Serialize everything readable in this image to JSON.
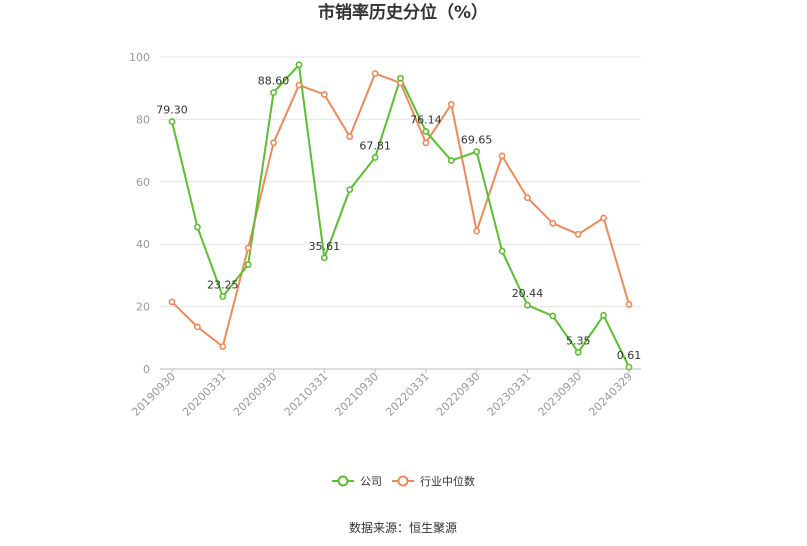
{
  "chart_data": {
    "type": "line",
    "title": "市销率历史分位（%）",
    "x": [
      "20190930",
      "20191231",
      "20200331",
      "20200630",
      "20200930",
      "20201231",
      "20210331",
      "20210630",
      "20210930",
      "20211231",
      "20220331",
      "20220630",
      "20220930",
      "20221231",
      "20230331",
      "20230630",
      "20230930",
      "20231231",
      "20240329"
    ],
    "x_tick_labels": [
      "20190930",
      "20200331",
      "20200930",
      "20210331",
      "20210930",
      "20220331",
      "20220930",
      "20230331",
      "20230930",
      "20240329"
    ],
    "ylim": [
      0,
      100
    ],
    "y_ticks": [
      0,
      20,
      40,
      60,
      80,
      100
    ],
    "grid": true,
    "legend_position": "bottom",
    "series": [
      {
        "name": "公司",
        "color": "#5bbf2e",
        "values": [
          79.3,
          45.5,
          23.25,
          33.5,
          88.6,
          97.5,
          35.61,
          57.5,
          67.81,
          93.2,
          76.14,
          66.8,
          69.65,
          37.8,
          20.44,
          17.0,
          5.35,
          17.2,
          0.61
        ],
        "labels": {
          "0": "79.30",
          "2": "23.25",
          "4": "88.60",
          "6": "35.61",
          "8": "67.81",
          "10": "76.14",
          "12": "69.65",
          "14": "20.44",
          "16": "5.35",
          "18": "0.61"
        }
      },
      {
        "name": "行业中位数",
        "color": "#f0895a",
        "values": [
          21.5,
          13.5,
          7.2,
          38.8,
          72.5,
          91.0,
          88.0,
          74.5,
          94.7,
          91.7,
          72.5,
          84.8,
          44.2,
          68.3,
          54.9,
          46.7,
          43.2,
          48.4,
          20.7
        ]
      }
    ]
  },
  "footer": {
    "source": "数据来源：恒生聚源"
  }
}
